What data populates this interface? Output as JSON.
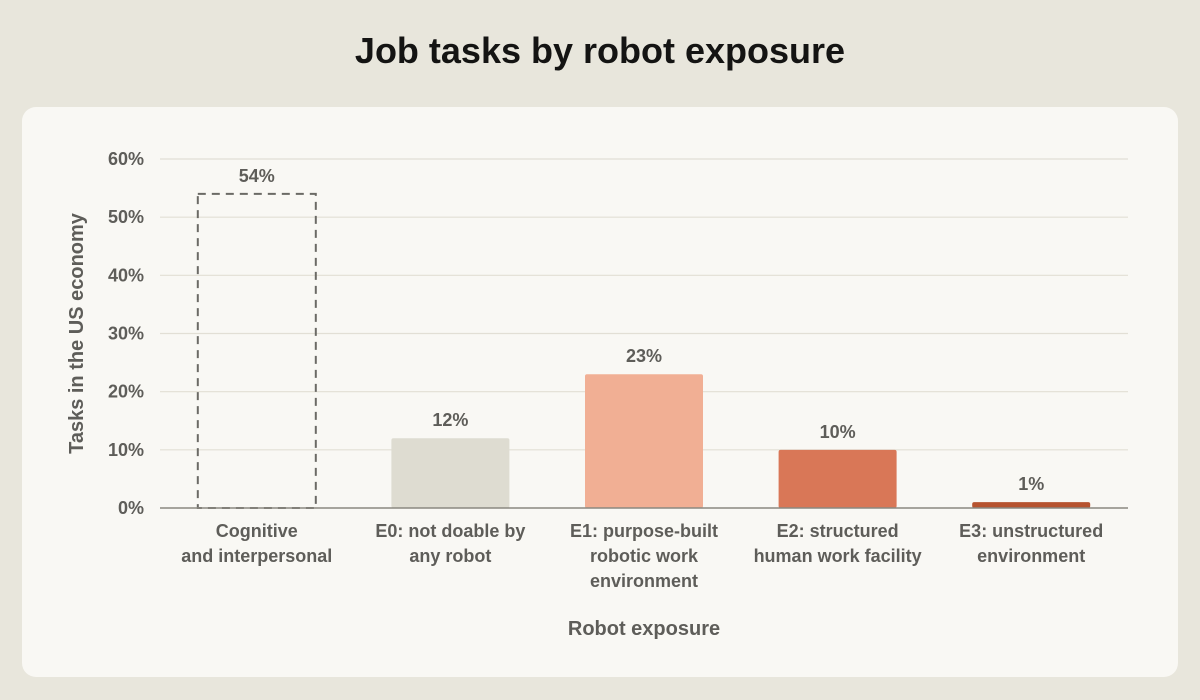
{
  "chart_data": {
    "type": "bar",
    "title": "Job tasks by robot exposure",
    "xlabel": "Robot exposure",
    "ylabel": "Tasks in the US economy",
    "ylim": [
      0,
      60
    ],
    "yticks": [
      "0%",
      "10%",
      "20%",
      "30%",
      "40%",
      "50%",
      "60%"
    ],
    "categories": [
      [
        "Cognitive",
        "and interpersonal"
      ],
      [
        "E0: not doable by",
        "any robot"
      ],
      [
        "E1: purpose-built",
        "robotic work",
        "environment"
      ],
      [
        "E2: structured",
        "human work facility"
      ],
      [
        "E3: unstructured",
        "environment"
      ]
    ],
    "values": [
      54,
      12,
      23,
      10,
      1
    ],
    "value_labels": [
      "54%",
      "12%",
      "23%",
      "10%",
      "1%"
    ],
    "colors": [
      "none",
      "#dedcd1",
      "#f1af94",
      "#d97757",
      "#b6532f"
    ],
    "styles": [
      "dashed",
      "solid",
      "solid",
      "solid",
      "solid"
    ],
    "grid": true
  },
  "colors": {
    "background": "#e8e6dc",
    "card": "#f9f8f4",
    "text": "#141413",
    "muted": "#5e5d59",
    "grid": "#e2dfd5",
    "axis": "#8a8880"
  }
}
